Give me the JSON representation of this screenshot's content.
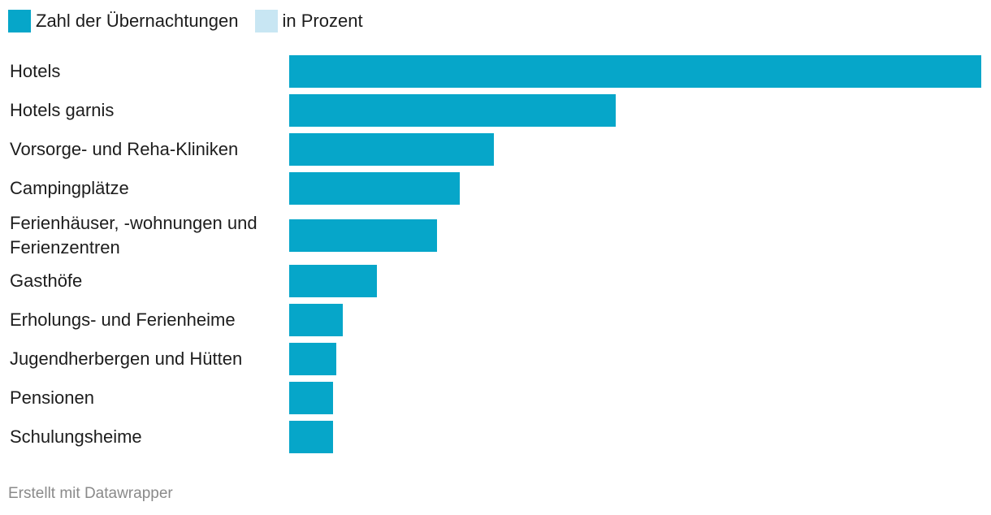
{
  "legend": {
    "items": [
      {
        "label": "Zahl der Übernachtungen",
        "color": "#06a6c9"
      },
      {
        "label": "in Prozent",
        "color": "#c8e6f3"
      }
    ]
  },
  "chart_data": {
    "type": "bar",
    "orientation": "horizontal",
    "title": "",
    "xlabel": "",
    "ylabel": "",
    "categories": [
      "Hotels",
      "Hotels garnis",
      "Vorsorge- und Reha-Kliniken",
      "Campingplätze",
      "Ferienhäuser, -wohnungen und Ferienzentren",
      "Gasthöfe",
      "Erholungs- und Ferienheime",
      "Jugendherbergen und Hütten",
      "Pensionen",
      "Schulungsheime"
    ],
    "series": [
      {
        "name": "Zahl der Übernachtungen",
        "color": "#06a6c9",
        "values": [
          100,
          47.2,
          29.6,
          24.6,
          21.4,
          12.7,
          7.7,
          6.8,
          6.3,
          6.3
        ]
      }
    ],
    "xlim": [
      0,
      100
    ],
    "grid": false,
    "legend_position": "top-left",
    "value_labels_shown": false
  },
  "footer": {
    "credit": "Erstellt mit Datawrapper"
  }
}
